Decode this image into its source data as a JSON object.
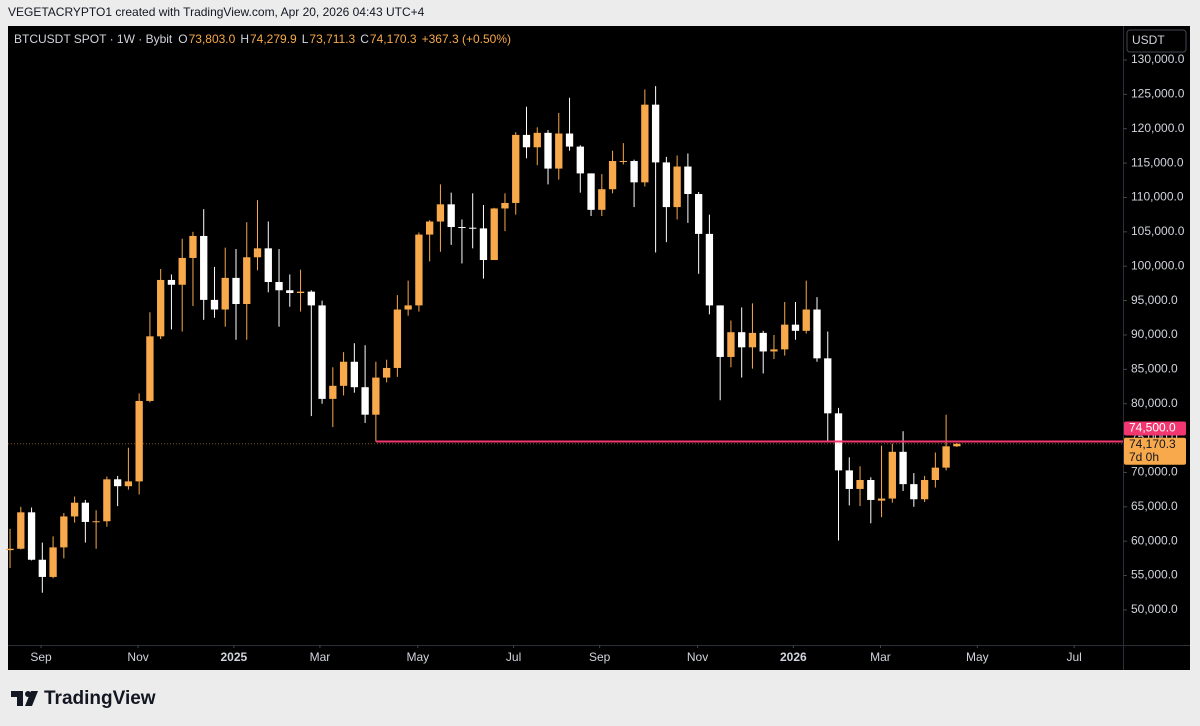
{
  "snapshot": {
    "caption": "VEGETACRYPTO1 created with TradingView.com, Apr 20, 2026 04:43 UTC+4",
    "brand": "TradingView"
  },
  "chart_data": {
    "type": "candlestick",
    "title": "BTCUSDT SPOT · 1W · Bybit",
    "legend_ohlc": [
      {
        "key": "O",
        "value": "73,803.0"
      },
      {
        "key": "H",
        "value": "74,279.9"
      },
      {
        "key": "L",
        "value": "73,711.3"
      },
      {
        "key": "C",
        "value": "74,170.3"
      }
    ],
    "change": "+367.3 (+0.50%)",
    "currency": "USDT",
    "up_color": "#f7a94b",
    "down_color": "#ffffff",
    "grid": false,
    "open": [
      58700,
      58900,
      64200,
      57300,
      54800,
      59100,
      63600,
      65600,
      62800,
      62900,
      69000,
      68000,
      68700,
      80400,
      89800,
      98000,
      97300,
      101200,
      104400,
      95100,
      93700,
      98300,
      94500,
      101300,
      102600,
      97700,
      96500,
      96100,
      96300,
      94300,
      80700,
      82600,
      86100,
      82400,
      78400,
      83800,
      85200,
      93700,
      94300,
      104600,
      106500,
      109000,
      105700,
      105600,
      105500,
      100900,
      108400,
      109200,
      119100,
      117300,
      119400,
      114200,
      119300,
      117400,
      113500,
      108200,
      111200,
      115200,
      115300,
      112200,
      123500,
      115100,
      108600,
      114500,
      110500,
      104700,
      94300,
      86800,
      90400,
      88200,
      90300,
      87600,
      87900,
      91500,
      90600,
      93700,
      86600,
      78600,
      70300,
      67600,
      68900,
      65900,
      66200,
      73000,
      68300,
      66100,
      68900,
      70700,
      73803
    ],
    "high": [
      61800,
      65000,
      64900,
      59800,
      60700,
      64100,
      66500,
      66000,
      64500,
      69400,
      69500,
      73600,
      81500,
      93300,
      99600,
      98800,
      104000,
      105000,
      108300,
      99900,
      102700,
      102500,
      106400,
      109600,
      106500,
      102500,
      98800,
      99500,
      96500,
      95000,
      85300,
      87500,
      88800,
      88500,
      86100,
      86400,
      95800,
      97900,
      104900,
      106700,
      111900,
      110700,
      106800,
      110600,
      108900,
      108500,
      110600,
      119500,
      123200,
      120200,
      119800,
      122300,
      124500,
      117600,
      113500,
      113400,
      116800,
      117900,
      115500,
      125700,
      126200,
      115900,
      116100,
      116400,
      110800,
      107500,
      94300,
      92100,
      94000,
      94600,
      90600,
      90000,
      94800,
      94800,
      97900,
      95500,
      90500,
      79400,
      72200,
      70900,
      69300,
      73900,
      74200,
      76000,
      69900,
      69500,
      72900,
      78400,
      74279.9
    ],
    "low": [
      56100,
      58800,
      57200,
      52500,
      54600,
      57500,
      62700,
      59800,
      58900,
      62100,
      65100,
      67500,
      66800,
      80200,
      89400,
      90800,
      90500,
      94200,
      92200,
      92500,
      91200,
      89300,
      89300,
      99400,
      96200,
      91200,
      94100,
      93400,
      78200,
      80000,
      76600,
      81200,
      81600,
      77200,
      74500,
      83100,
      83900,
      92800,
      93400,
      100700,
      102100,
      103100,
      100400,
      102600,
      98200,
      100900,
      105100,
      107500,
      115700,
      114700,
      111900,
      112600,
      116800,
      110700,
      107300,
      107300,
      110600,
      114800,
      108600,
      111600,
      102000,
      103500,
      106800,
      106300,
      98900,
      93000,
      80500,
      85300,
      83800,
      85100,
      84400,
      86500,
      87000,
      89300,
      90200,
      86100,
      74600,
      60100,
      65200,
      65100,
      62600,
      63500,
      65600,
      67300,
      65000,
      65700,
      67800,
      70300,
      73711.3
    ],
    "close": [
      58900,
      64200,
      57300,
      54800,
      59100,
      63600,
      65600,
      62800,
      62900,
      69000,
      68000,
      68700,
      80400,
      89800,
      98000,
      97300,
      101200,
      104400,
      95100,
      93700,
      98300,
      94500,
      101300,
      102600,
      97700,
      96500,
      96100,
      96300,
      94300,
      80700,
      82600,
      86100,
      82400,
      78400,
      83800,
      85200,
      93700,
      94300,
      104600,
      106500,
      109000,
      105700,
      105600,
      105500,
      100900,
      108400,
      109200,
      119100,
      117300,
      119400,
      114200,
      119300,
      117400,
      113500,
      108200,
      111200,
      115300,
      115300,
      112200,
      123500,
      115100,
      108600,
      114500,
      110500,
      104700,
      94300,
      86800,
      90400,
      88200,
      90300,
      87600,
      87900,
      91500,
      90600,
      93700,
      86600,
      78600,
      70300,
      67600,
      68900,
      66000,
      66200,
      73000,
      68300,
      66100,
      68900,
      70700,
      73800,
      74170.3
    ],
    "xlim": [
      -0.19,
      103.44
    ],
    "xticks": [
      {
        "value": 2.88,
        "label": "Sep"
      },
      {
        "value": 11.9,
        "label": "Nov"
      },
      {
        "value": 20.8,
        "label": "2025"
      },
      {
        "value": 28.8,
        "label": "Mar"
      },
      {
        "value": 37.9,
        "label": "May"
      },
      {
        "value": 46.8,
        "label": "Jul"
      },
      {
        "value": 54.8,
        "label": "Sep"
      },
      {
        "value": 63.9,
        "label": "Nov"
      },
      {
        "value": 72.8,
        "label": "2026"
      },
      {
        "value": 80.9,
        "label": "Mar"
      },
      {
        "value": 89.9,
        "label": "May"
      },
      {
        "value": 98.9,
        "label": "Jul"
      }
    ],
    "ylim": [
      44900,
      134650
    ],
    "yticks": [
      {
        "value": 50000,
        "label": "50,000.0"
      },
      {
        "value": 55000,
        "label": "55,000.0"
      },
      {
        "value": 60000,
        "label": "60,000.0"
      },
      {
        "value": 65000,
        "label": "65,000.0"
      },
      {
        "value": 70000,
        "label": "70,000.0"
      },
      {
        "value": 75000,
        "label": "75,000.0"
      },
      {
        "value": 80000,
        "label": "80,000.0"
      },
      {
        "value": 85000,
        "label": "85,000.0"
      },
      {
        "value": 90000,
        "label": "90,000.0"
      },
      {
        "value": 95000,
        "label": "95,000.0"
      },
      {
        "value": 100000,
        "label": "100,000.0"
      },
      {
        "value": 105000,
        "label": "105,000.0"
      },
      {
        "value": 110000,
        "label": "110,000.0"
      },
      {
        "value": 115000,
        "label": "115,000.0"
      },
      {
        "value": 120000,
        "label": "120,000.0"
      },
      {
        "value": 125000,
        "label": "125,000.0"
      },
      {
        "value": 130000,
        "label": "130,000.0"
      }
    ],
    "hline": {
      "value": 74500,
      "label": "74,500.0",
      "color": "#f23670",
      "x_start": 34
    },
    "last_price": {
      "value": 74170.3,
      "label": "74,170.3",
      "countdown": "7d 0h",
      "color": "#f7a94b"
    }
  }
}
